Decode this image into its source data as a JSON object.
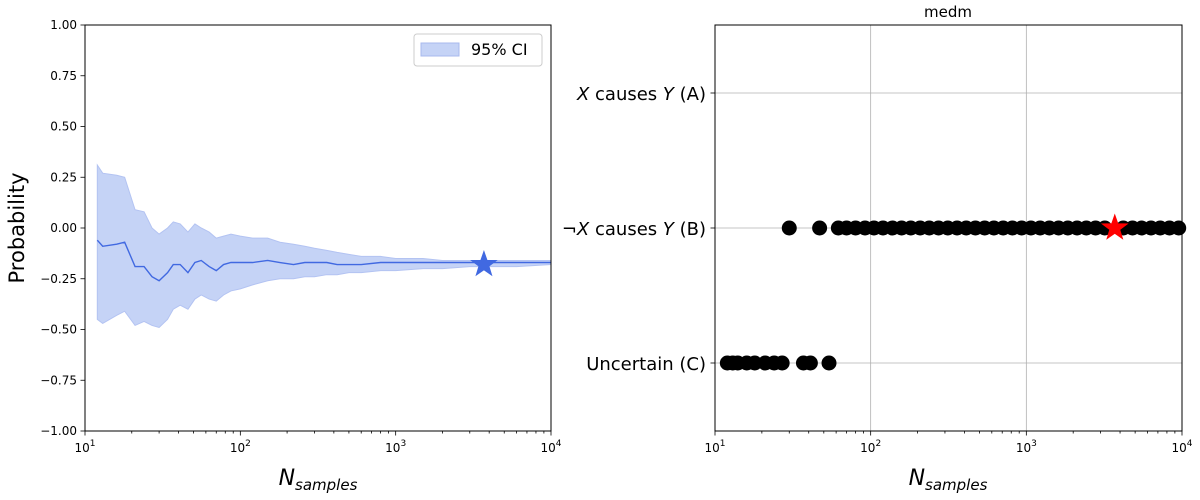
{
  "chart_data": [
    {
      "type": "line",
      "title": "",
      "xlabel_base": "N",
      "xlabel_sub": "samples",
      "ylabel": "Probability",
      "xscale": "log",
      "xlim": [
        10,
        10000
      ],
      "ylim": [
        -1.0,
        1.0
      ],
      "grid": false,
      "x_ticks": [
        {
          "base": "10",
          "exp": "1"
        },
        {
          "base": "10",
          "exp": "2"
        },
        {
          "base": "10",
          "exp": "3"
        },
        {
          "base": "10",
          "exp": "4"
        }
      ],
      "y_ticks": [
        "−1.00",
        "−0.75",
        "−0.50",
        "−0.25",
        "0.00",
        "0.25",
        "0.50",
        "0.75",
        "1.00"
      ],
      "legend": {
        "placement": "upper-right",
        "entries": [
          "95% CI"
        ]
      },
      "line_color": "#4169e1",
      "band_color": "#c5d3f6",
      "series": [
        {
          "x": [
            12,
            13,
            16,
            18,
            21,
            24,
            27,
            30,
            34,
            37,
            41,
            46,
            51,
            56,
            63,
            70,
            78,
            87,
            100,
            120,
            150,
            180,
            220,
            260,
            300,
            360,
            420,
            500,
            600,
            800,
            1000,
            1500,
            2000,
            3000,
            4000,
            6000,
            10000
          ],
          "y": [
            -0.06,
            -0.09,
            -0.08,
            -0.07,
            -0.19,
            -0.19,
            -0.24,
            -0.26,
            -0.22,
            -0.18,
            -0.18,
            -0.22,
            -0.17,
            -0.16,
            -0.19,
            -0.21,
            -0.18,
            -0.17,
            -0.17,
            -0.17,
            -0.16,
            -0.17,
            -0.18,
            -0.17,
            -0.17,
            -0.17,
            -0.18,
            -0.18,
            -0.18,
            -0.17,
            -0.17,
            -0.17,
            -0.17,
            -0.17,
            -0.17,
            -0.17,
            -0.17
          ],
          "lower": [
            -0.45,
            -0.47,
            -0.43,
            -0.41,
            -0.48,
            -0.46,
            -0.48,
            -0.49,
            -0.45,
            -0.4,
            -0.38,
            -0.4,
            -0.35,
            -0.33,
            -0.35,
            -0.36,
            -0.33,
            -0.31,
            -0.3,
            -0.28,
            -0.26,
            -0.25,
            -0.25,
            -0.24,
            -0.24,
            -0.23,
            -0.23,
            -0.22,
            -0.22,
            -0.21,
            -0.21,
            -0.2,
            -0.2,
            -0.19,
            -0.19,
            -0.19,
            -0.18
          ],
          "upper": [
            0.31,
            0.27,
            0.26,
            0.25,
            0.09,
            0.08,
            0.0,
            -0.03,
            0.0,
            0.03,
            0.02,
            -0.02,
            0.02,
            0.0,
            -0.02,
            -0.05,
            -0.04,
            -0.03,
            -0.04,
            -0.05,
            -0.05,
            -0.07,
            -0.08,
            -0.09,
            -0.1,
            -0.11,
            -0.12,
            -0.13,
            -0.14,
            -0.14,
            -0.15,
            -0.15,
            -0.16,
            -0.16,
            -0.16,
            -0.16,
            -0.16
          ]
        }
      ],
      "star_marker": {
        "x": 3700,
        "y": -0.18,
        "color": "#4169e1"
      }
    },
    {
      "type": "scatter",
      "title": "medm",
      "xlabel_base": "N",
      "xlabel_sub": "samples",
      "ylabel": "",
      "xscale": "log",
      "xlim": [
        10,
        10000
      ],
      "grid": true,
      "x_ticks": [
        {
          "base": "10",
          "exp": "1"
        },
        {
          "base": "10",
          "exp": "2"
        },
        {
          "base": "10",
          "exp": "3"
        },
        {
          "base": "10",
          "exp": "4"
        }
      ],
      "categories": [
        {
          "pre": "",
          "v1": "X",
          "mid": " causes ",
          "v2": "Y",
          "post": " (A)"
        },
        {
          "pre": "¬",
          "v1": "X",
          "mid": " causes ",
          "v2": "Y",
          "post": " (B)"
        },
        {
          "pre": "Uncertain (C)",
          "v1": "",
          "mid": "",
          "v2": "",
          "post": ""
        }
      ],
      "marker_color": "#000000",
      "points": [
        {
          "x": 12,
          "cat": 2
        },
        {
          "x": 13,
          "cat": 2
        },
        {
          "x": 14,
          "cat": 2
        },
        {
          "x": 16,
          "cat": 2
        },
        {
          "x": 18,
          "cat": 2
        },
        {
          "x": 21,
          "cat": 2
        },
        {
          "x": 24,
          "cat": 2
        },
        {
          "x": 27,
          "cat": 2
        },
        {
          "x": 37,
          "cat": 2
        },
        {
          "x": 41,
          "cat": 2
        },
        {
          "x": 54,
          "cat": 2
        },
        {
          "x": 30,
          "cat": 1
        },
        {
          "x": 47,
          "cat": 1
        },
        {
          "x": 62,
          "cat": 1
        },
        {
          "x": 70,
          "cat": 1
        },
        {
          "x": 80,
          "cat": 1
        },
        {
          "x": 92,
          "cat": 1
        },
        {
          "x": 105,
          "cat": 1
        },
        {
          "x": 120,
          "cat": 1
        },
        {
          "x": 138,
          "cat": 1
        },
        {
          "x": 158,
          "cat": 1
        },
        {
          "x": 181,
          "cat": 1
        },
        {
          "x": 208,
          "cat": 1
        },
        {
          "x": 238,
          "cat": 1
        },
        {
          "x": 273,
          "cat": 1
        },
        {
          "x": 313,
          "cat": 1
        },
        {
          "x": 359,
          "cat": 1
        },
        {
          "x": 411,
          "cat": 1
        },
        {
          "x": 471,
          "cat": 1
        },
        {
          "x": 540,
          "cat": 1
        },
        {
          "x": 619,
          "cat": 1
        },
        {
          "x": 710,
          "cat": 1
        },
        {
          "x": 814,
          "cat": 1
        },
        {
          "x": 933,
          "cat": 1
        },
        {
          "x": 1070,
          "cat": 1
        },
        {
          "x": 1227,
          "cat": 1
        },
        {
          "x": 1406,
          "cat": 1
        },
        {
          "x": 1612,
          "cat": 1
        },
        {
          "x": 1848,
          "cat": 1
        },
        {
          "x": 2119,
          "cat": 1
        },
        {
          "x": 2429,
          "cat": 1
        },
        {
          "x": 2785,
          "cat": 1
        },
        {
          "x": 3193,
          "cat": 1
        },
        {
          "x": 4196,
          "cat": 1
        },
        {
          "x": 4810,
          "cat": 1
        },
        {
          "x": 5514,
          "cat": 1
        },
        {
          "x": 6322,
          "cat": 1
        },
        {
          "x": 7248,
          "cat": 1
        },
        {
          "x": 8310,
          "cat": 1
        },
        {
          "x": 9527,
          "cat": 1
        }
      ],
      "star_marker": {
        "x": 3700,
        "cat": 1,
        "color": "#ff0000"
      }
    }
  ]
}
